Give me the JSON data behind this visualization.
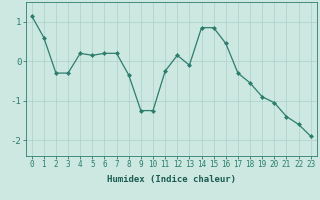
{
  "x": [
    0,
    1,
    2,
    3,
    4,
    5,
    6,
    7,
    8,
    9,
    10,
    11,
    12,
    13,
    14,
    15,
    16,
    17,
    18,
    19,
    20,
    21,
    22,
    23
  ],
  "y": [
    1.15,
    0.6,
    -0.3,
    -0.3,
    0.2,
    0.15,
    0.2,
    0.2,
    -0.35,
    -1.25,
    -1.25,
    -0.25,
    0.15,
    -0.1,
    0.85,
    0.85,
    0.45,
    -0.3,
    -0.55,
    -0.9,
    -1.05,
    -1.4,
    -1.6,
    -1.9
  ],
  "line_color": "#2d7d6e",
  "marker": "D",
  "marker_size": 2,
  "bg_color": "#cce8e0",
  "grid_color": "#b0d4cc",
  "xlabel": "Humidex (Indice chaleur)",
  "xlim": [
    -0.5,
    23.5
  ],
  "ylim": [
    -2.4,
    1.5
  ],
  "yticks": [
    -2,
    -1,
    0,
    1
  ],
  "xticks": [
    0,
    1,
    2,
    3,
    4,
    5,
    6,
    7,
    8,
    9,
    10,
    11,
    12,
    13,
    14,
    15,
    16,
    17,
    18,
    19,
    20,
    21,
    22,
    23
  ],
  "tick_color": "#2d7d6e",
  "label_color": "#1a5c52",
  "tick_fontsize": 5.5,
  "xlabel_fontsize": 6.5
}
